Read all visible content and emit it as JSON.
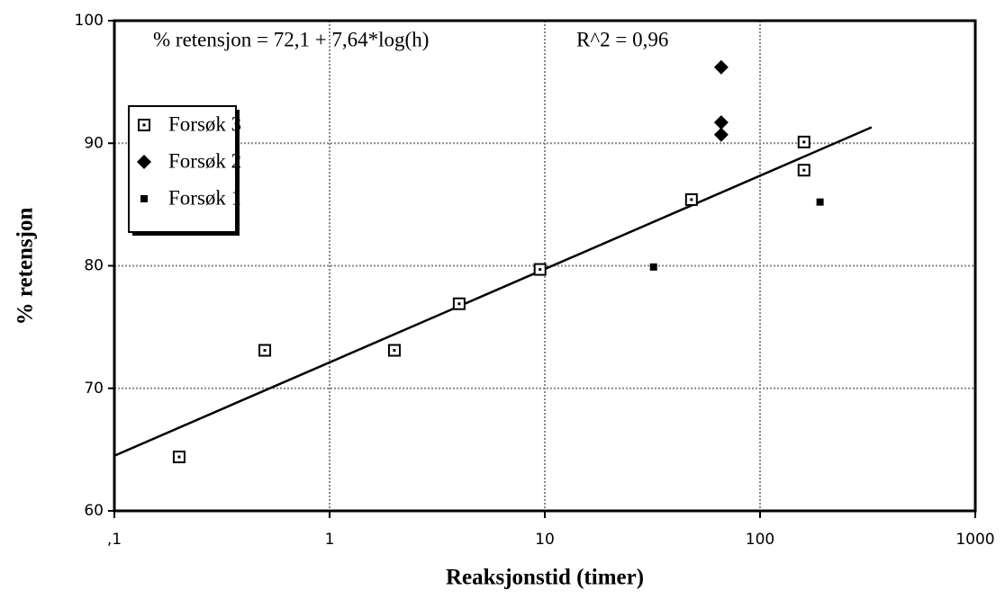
{
  "chart_data": {
    "type": "scatter",
    "xlabel": "Reaksjonstid  (timer)",
    "ylabel": "% retensjon",
    "annotations": [
      "% retensjon = 72,1 + 7,64*log(h)",
      "R^2 = 0,96"
    ],
    "xscale": "log",
    "xlim": [
      0.1,
      1000
    ],
    "ylim": [
      60,
      100
    ],
    "xticks": [
      {
        "value": 0.1,
        "label": ",1"
      },
      1,
      10,
      100,
      1000
    ],
    "yticks": [
      60,
      70,
      80,
      90,
      100
    ],
    "grid": true,
    "legend": "upper left",
    "series": [
      {
        "name": "Forsøk 3",
        "marker": "open-square",
        "color": "#000000",
        "x": [
          0.2,
          0.5,
          2,
          4,
          9.5,
          48,
          160,
          160
        ],
        "values": [
          64.4,
          73.1,
          73.1,
          76.9,
          79.7,
          85.4,
          90.1,
          87.8
        ]
      },
      {
        "name": "Forsøk 2",
        "marker": "diamond",
        "color": "#000000",
        "x": [
          66,
          66,
          66
        ],
        "values": [
          96.2,
          91.7,
          90.7
        ]
      },
      {
        "name": "Forsøk 1",
        "marker": "small-square",
        "color": "#000000",
        "x": [
          32,
          190
        ],
        "values": [
          79.9,
          85.2
        ]
      }
    ],
    "trend": {
      "x": [
        0.1,
        330
      ],
      "values": [
        64.5,
        91.3
      ],
      "color": "#000000"
    }
  }
}
